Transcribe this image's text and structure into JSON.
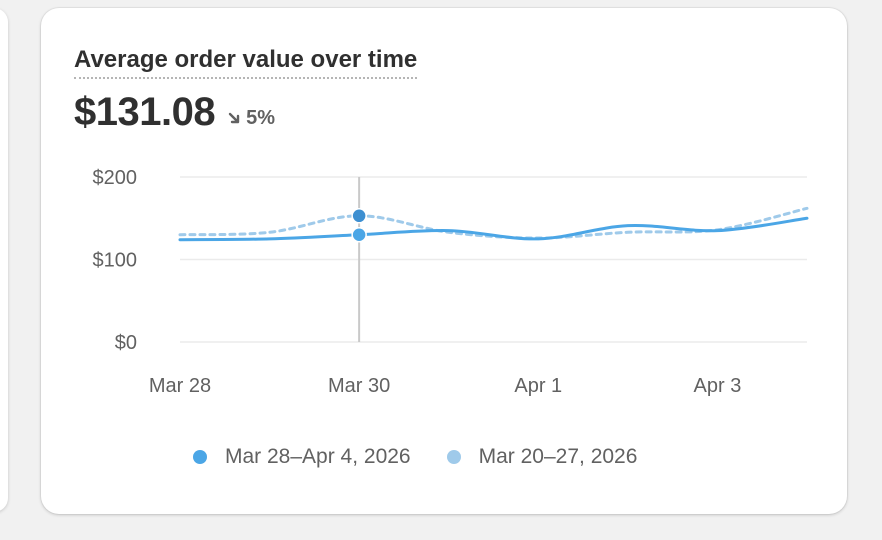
{
  "card": {
    "title": "Average order value over time",
    "value": "$131.08",
    "change_icon": "arrow-down-right-icon",
    "change": "5%"
  },
  "legend": [
    {
      "label": "Mar 28–Apr 4, 2026",
      "color": "#4ba6e6"
    },
    {
      "label": "Mar 20–27, 2026",
      "color": "#9fcaea"
    }
  ],
  "chart_data": {
    "type": "line",
    "title": "Average order value over time",
    "xlabel": "",
    "ylabel": "",
    "x": [
      "Mar 28",
      "Mar 29",
      "Mar 30",
      "Mar 31",
      "Apr 1",
      "Apr 2",
      "Apr 3",
      "Apr 4"
    ],
    "x_tick_labels": [
      "Mar 28",
      "Mar 30",
      "Apr 1",
      "Apr 3"
    ],
    "y_tick_labels": [
      "$0",
      "$100",
      "$200"
    ],
    "ylim": [
      0,
      200
    ],
    "grid": true,
    "legend_position": "bottom",
    "highlighted_x": "Mar 30",
    "series": [
      {
        "name": "Mar 28–Apr 4, 2026",
        "style": "solid",
        "color": "#4ba6e6",
        "values": [
          124,
          125,
          130,
          135,
          125,
          141,
          135,
          150
        ]
      },
      {
        "name": "Mar 20–27, 2026",
        "style": "dashed",
        "color": "#9fcaea",
        "values": [
          130,
          133,
          153,
          133,
          126,
          133,
          136,
          162
        ]
      }
    ]
  }
}
